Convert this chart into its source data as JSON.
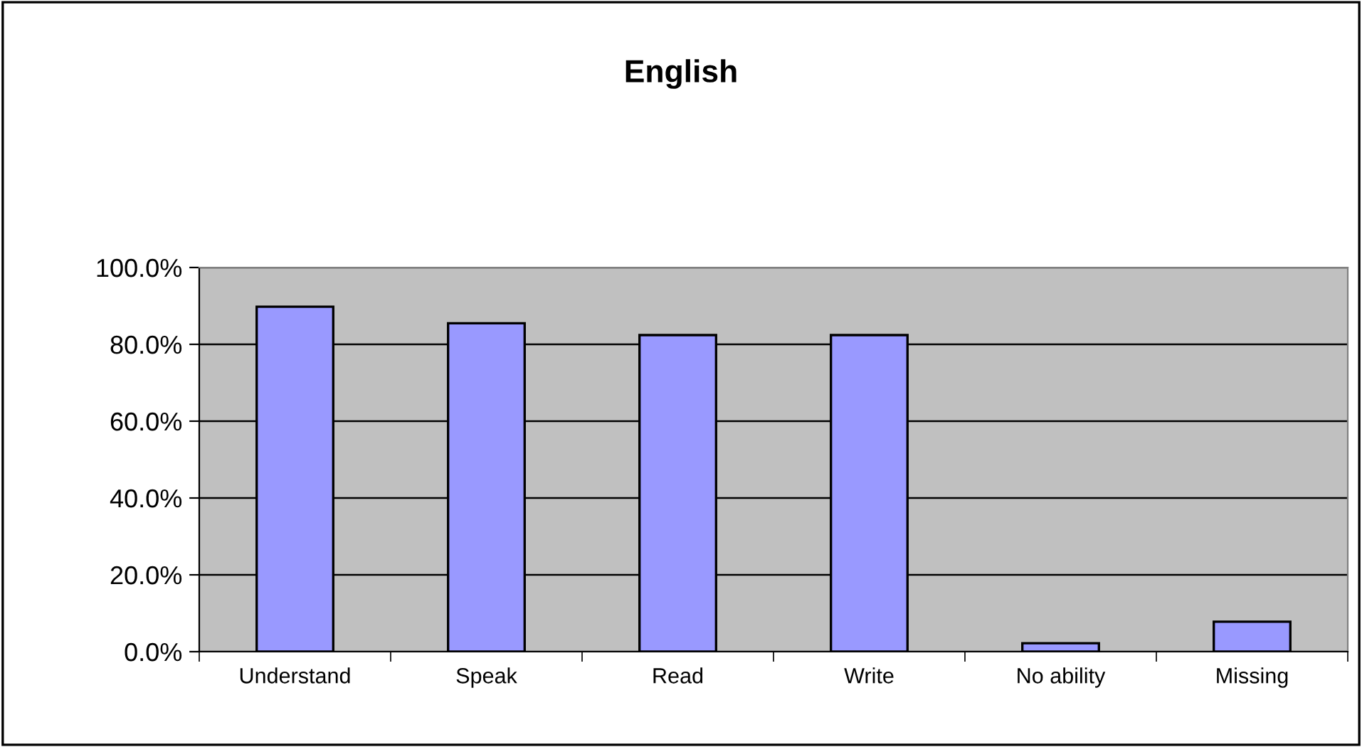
{
  "chart_data": {
    "type": "bar",
    "title": "English",
    "categories": [
      "Understand",
      "Speak",
      "Read",
      "Write",
      "No ability",
      "Missing"
    ],
    "values": [
      89.8,
      85.5,
      82.4,
      82.4,
      2.2,
      7.8
    ],
    "color": "#9999ff",
    "ylim": [
      0,
      100
    ],
    "yticks": [
      {
        "value": 0,
        "label": "0.0%"
      },
      {
        "value": 20,
        "label": "20.0%"
      },
      {
        "value": 40,
        "label": "40.0%"
      },
      {
        "value": 60,
        "label": "60.0%"
      },
      {
        "value": 80,
        "label": "80.0%"
      },
      {
        "value": 100,
        "label": "100.0%"
      }
    ],
    "grid": "y",
    "legend": false
  }
}
